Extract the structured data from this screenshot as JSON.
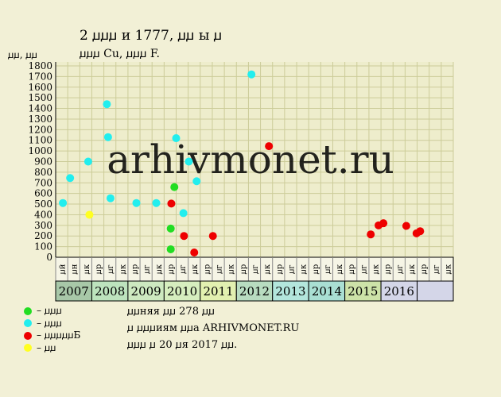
{
  "header": {
    "title": "2 ꙡꙡꙡ и 1777, ꙡꙡ ы ꙡ",
    "subtitle": "ꙡꙡꙡ Cu, ꙡꙡꙡ F.",
    "units": "ꙡꙡ, ꙡꙡ"
  },
  "watermark": "arhivmonet.ru",
  "colors": {
    "background": "#f2f0d6",
    "plot": "#eeedcc",
    "grid": "#cccc99",
    "green": "#22dd22",
    "cyan": "#22eeee",
    "red": "#ee0000",
    "yellow": "#ffff22"
  },
  "chart_data": {
    "type": "scatter",
    "y_ticks": [
      0,
      100,
      200,
      300,
      400,
      500,
      600,
      700,
      800,
      900,
      1000,
      1100,
      1200,
      1300,
      1400,
      1500,
      1600,
      1700,
      1800
    ],
    "ylim": [
      0,
      1800
    ],
    "grid": true,
    "quarter_labels": [
      "ꙡй",
      "ꙡн",
      "ꙡк",
      "ꙡр",
      "ꙡг",
      "ꙡк",
      "ꙡр",
      "ꙡг",
      "ꙡк",
      "ꙡр",
      "ꙡг",
      "ꙡк",
      "ꙡр",
      "ꙡг",
      "ꙡк",
      "ꙡр",
      "ꙡг",
      "ꙡк",
      "ꙡр",
      "ꙡг",
      "ꙡк",
      "ꙡр",
      "ꙡг",
      "ꙡк",
      "ꙡр",
      "ꙡг",
      "ꙡк",
      "ꙡр",
      "ꙡг",
      "ꙡк",
      "ꙡр",
      "ꙡг",
      "ꙡк"
    ],
    "years": [
      {
        "label": "2007",
        "start": 0,
        "span": 3,
        "color": "#a8c8a8"
      },
      {
        "label": "2008",
        "start": 3,
        "span": 3,
        "color": "#bde3bd"
      },
      {
        "label": "2009",
        "start": 6,
        "span": 3,
        "color": "#cde9c0"
      },
      {
        "label": "2010",
        "start": 9,
        "span": 3,
        "color": "#d6eebf"
      },
      {
        "label": "2011",
        "start": 12,
        "span": 3,
        "color": "#e2f0b0"
      },
      {
        "label": "2012",
        "start": 15,
        "span": 3,
        "color": "#b8dcc0"
      },
      {
        "label": "2013",
        "start": 18,
        "span": 3,
        "color": "#b3e6dc"
      },
      {
        "label": "2014",
        "start": 21,
        "span": 3,
        "color": "#a9dfd3"
      },
      {
        "label": "2015",
        "start": 24,
        "span": 3,
        "color": "#cde2a8"
      },
      {
        "label": "2016",
        "start": 27,
        "span": 3,
        "color": "#d4d6e8"
      }
    ],
    "series": [
      {
        "name": "ꙡꙡꙡ",
        "color": "green",
        "points": [
          {
            "x": 9.35,
            "y": 660
          },
          {
            "x": 9.05,
            "y": 270
          },
          {
            "x": 9.05,
            "y": 75
          }
        ]
      },
      {
        "name": "ꙡꙡꙡ",
        "color": "cyan",
        "points": [
          {
            "x": 0.1,
            "y": 510
          },
          {
            "x": 0.7,
            "y": 745
          },
          {
            "x": 2.2,
            "y": 900
          },
          {
            "x": 3.75,
            "y": 1440
          },
          {
            "x": 3.85,
            "y": 1130
          },
          {
            "x": 4.05,
            "y": 555
          },
          {
            "x": 6.2,
            "y": 510
          },
          {
            "x": 7.85,
            "y": 510
          },
          {
            "x": 9.5,
            "y": 1120
          },
          {
            "x": 10.1,
            "y": 415
          },
          {
            "x": 10.55,
            "y": 900
          },
          {
            "x": 11.2,
            "y": 715
          },
          {
            "x": 15.75,
            "y": 1720
          }
        ]
      },
      {
        "name": "ꙡꙡꙡꙡꙡБ",
        "color": "red",
        "points": [
          {
            "x": 9.1,
            "y": 505
          },
          {
            "x": 10.15,
            "y": 200
          },
          {
            "x": 11.0,
            "y": 45
          },
          {
            "x": 12.55,
            "y": 200
          },
          {
            "x": 17.2,
            "y": 1045
          },
          {
            "x": 25.65,
            "y": 215
          },
          {
            "x": 26.3,
            "y": 300
          },
          {
            "x": 26.7,
            "y": 320
          },
          {
            "x": 28.6,
            "y": 295
          },
          {
            "x": 29.45,
            "y": 225
          },
          {
            "x": 29.75,
            "y": 245
          }
        ]
      },
      {
        "name": "ꙡꙡ",
        "color": "yellow",
        "points": [
          {
            "x": 2.3,
            "y": 400
          }
        ]
      }
    ]
  },
  "notes": [
    "ꙡꙡняя ꙡꙡ 278 ꙡꙡ",
    "ꙡ ꙡꙡꙡиям ꙡꙡа ARHIVMONET.RU",
    "ꙡꙡꙡ ꙡ 20 ꙡя 2017 ꙡꙡ."
  ]
}
